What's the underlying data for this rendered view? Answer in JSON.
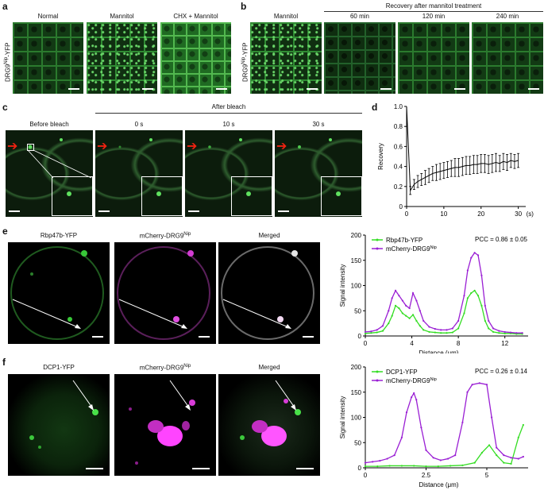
{
  "panels": {
    "a": {
      "label": "a",
      "ylabel_main": "DRG9",
      "ylabel_sup": "Nip",
      "ylabel_suffix": "-YFP",
      "captions": [
        "Normal",
        "Mannitol",
        "CHX + Mannitol"
      ]
    },
    "b": {
      "label": "b",
      "ylabel_main": "DRG9",
      "ylabel_sup": "Nip",
      "ylabel_suffix": "-YFP",
      "first_caption": "Mannitol",
      "group_title": "Recovery after mannitol treatment",
      "captions": [
        "60 min",
        "120 min",
        "240 min"
      ]
    },
    "c": {
      "label": "c",
      "first_caption": "Before bleach",
      "group_title": "After bleach",
      "captions": [
        "0 s",
        "10 s",
        "30 s"
      ]
    },
    "d": {
      "label": "d"
    },
    "e": {
      "label": "e",
      "captions": [
        "Rbp47b-YFP",
        "mCherry-DRG9",
        "Merged"
      ],
      "caption_sup": "Nip"
    },
    "f": {
      "label": "f",
      "captions": [
        "DCP1-YFP",
        "mCherry-DRG9",
        "Merged"
      ],
      "caption_sup": "Nip"
    }
  },
  "chart_data": [
    {
      "panel": "d",
      "type": "line",
      "ylabel": "Recovery",
      "xunit": "(s)",
      "xticks": [
        "0",
        "10",
        "20",
        "30"
      ],
      "yticks": [
        "0",
        "0.2",
        "0.4",
        "0.6",
        "0.8",
        "1.0"
      ],
      "xlim": [
        0,
        32
      ],
      "ylim": [
        0,
        1.0
      ],
      "x": [
        0,
        1,
        2,
        3,
        4,
        5,
        6,
        7,
        8,
        9,
        10,
        11,
        12,
        13,
        14,
        15,
        16,
        17,
        18,
        19,
        20,
        21,
        22,
        23,
        24,
        25,
        26,
        27,
        28,
        29,
        30
      ],
      "y": [
        1.0,
        0.16,
        0.22,
        0.25,
        0.27,
        0.29,
        0.31,
        0.33,
        0.34,
        0.35,
        0.36,
        0.37,
        0.38,
        0.39,
        0.39,
        0.4,
        0.41,
        0.41,
        0.42,
        0.42,
        0.43,
        0.43,
        0.42,
        0.43,
        0.44,
        0.43,
        0.45,
        0.44,
        0.46,
        0.45,
        0.46
      ],
      "err": [
        0,
        0.04,
        0.05,
        0.06,
        0.06,
        0.07,
        0.07,
        0.07,
        0.08,
        0.08,
        0.08,
        0.08,
        0.08,
        0.09,
        0.09,
        0.09,
        0.09,
        0.09,
        0.09,
        0.09,
        0.09,
        0.09,
        0.09,
        0.09,
        0.09,
        0.08,
        0.08,
        0.08,
        0.07,
        0.07,
        0.07
      ]
    },
    {
      "panel": "e",
      "type": "line",
      "ylabel": "Signal intensity",
      "xlabel": "Distance (μm)",
      "xticks": [
        "0",
        "4",
        "8",
        "12"
      ],
      "yticks": [
        "0",
        "50",
        "100",
        "150",
        "200"
      ],
      "xlim": [
        0,
        14
      ],
      "ylim": [
        0,
        200
      ],
      "annotation": "PCC = 0.86 ± 0.05",
      "series": [
        {
          "name": "Rbp47b-YFP",
          "name_sup": "",
          "color": "#33dd22",
          "x": [
            0,
            0.5,
            1,
            1.5,
            2,
            2.3,
            2.6,
            2.9,
            3.2,
            3.5,
            3.8,
            4.1,
            4.4,
            4.7,
            5,
            5.5,
            6,
            6.5,
            7,
            7.5,
            8,
            8.5,
            8.8,
            9.1,
            9.4,
            9.7,
            10,
            10.3,
            10.6,
            11,
            11.5,
            12,
            12.5,
            13,
            13.5
          ],
          "y": [
            5,
            6,
            7,
            10,
            25,
            40,
            60,
            55,
            45,
            40,
            35,
            42,
            30,
            20,
            12,
            8,
            7,
            6,
            6,
            7,
            15,
            45,
            75,
            85,
            90,
            80,
            60,
            30,
            15,
            8,
            6,
            5,
            5,
            4,
            4
          ]
        },
        {
          "name": "mCherry-DRG9",
          "name_sup": "Nip",
          "color": "#9a1fd4",
          "x": [
            0,
            0.5,
            1,
            1.5,
            2,
            2.3,
            2.6,
            2.9,
            3.2,
            3.5,
            3.8,
            4.1,
            4.4,
            4.7,
            5,
            5.5,
            6,
            6.5,
            7,
            7.5,
            8,
            8.5,
            8.8,
            9.1,
            9.4,
            9.7,
            10,
            10.3,
            10.6,
            11,
            11.5,
            12,
            12.5,
            13,
            13.5
          ],
          "y": [
            8,
            9,
            12,
            20,
            50,
            75,
            90,
            80,
            70,
            60,
            55,
            85,
            70,
            50,
            30,
            18,
            14,
            12,
            12,
            15,
            30,
            80,
            130,
            155,
            165,
            160,
            120,
            60,
            30,
            15,
            10,
            8,
            7,
            6,
            6
          ]
        }
      ]
    },
    {
      "panel": "f",
      "type": "line",
      "ylabel": "Signal intensity",
      "xlabel": "Distance (μm)",
      "xticks": [
        "0",
        "2.5",
        "5"
      ],
      "yticks": [
        "0",
        "50",
        "100",
        "150",
        "200"
      ],
      "xlim": [
        0,
        6.7
      ],
      "ylim": [
        0,
        200
      ],
      "annotation": "PCC = 0.26 ± 0.14",
      "series": [
        {
          "name": "DCP1-YFP",
          "name_sup": "",
          "color": "#33dd22",
          "x": [
            0,
            0.5,
            1,
            1.5,
            2,
            2.5,
            3,
            3.5,
            4,
            4.5,
            4.8,
            5.1,
            5.4,
            5.7,
            6,
            6.3,
            6.5
          ],
          "y": [
            3,
            3,
            4,
            4,
            4,
            3,
            3,
            4,
            5,
            10,
            30,
            45,
            25,
            10,
            8,
            60,
            85
          ]
        },
        {
          "name": "mCherry-DRG9",
          "name_sup": "Nip",
          "color": "#9a1fd4",
          "x": [
            0,
            0.3,
            0.6,
            0.9,
            1.2,
            1.5,
            1.7,
            1.9,
            2.0,
            2.1,
            2.3,
            2.5,
            2.8,
            3.1,
            3.4,
            3.7,
            4.0,
            4.2,
            4.4,
            4.7,
            5.0,
            5.2,
            5.4,
            5.7,
            6.0,
            6.3,
            6.5
          ],
          "y": [
            10,
            12,
            14,
            18,
            25,
            60,
            110,
            140,
            148,
            135,
            80,
            35,
            20,
            15,
            18,
            25,
            90,
            150,
            165,
            168,
            165,
            100,
            40,
            25,
            20,
            18,
            22
          ]
        }
      ]
    }
  ]
}
